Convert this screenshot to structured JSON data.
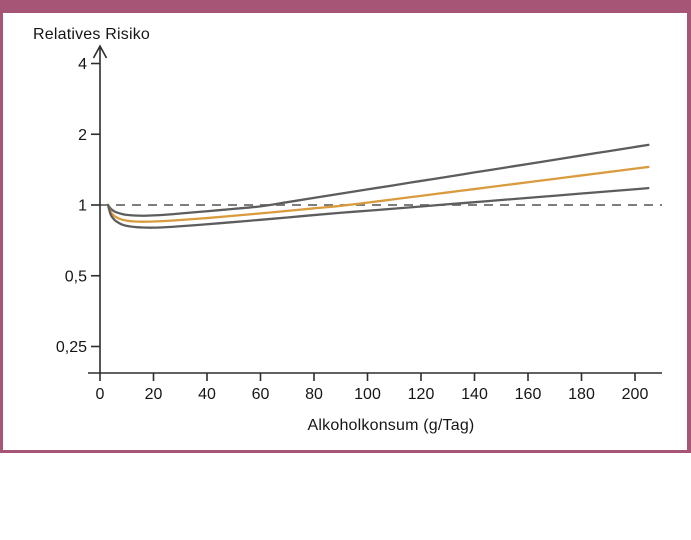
{
  "figure": {
    "frame_color": "#a65577",
    "background_color": "#ffffff"
  },
  "chart_data": {
    "type": "line",
    "title": "",
    "ylabel": "Relatives Risiko",
    "xlabel": "Alkoholkonsum (g/Tag)",
    "y_scale": "log2",
    "grid": "off",
    "legend": "none",
    "xlim": [
      0,
      210
    ],
    "ylim": [
      0.22,
      4.6
    ],
    "x_ticks": [
      0,
      20,
      40,
      60,
      80,
      100,
      120,
      140,
      160,
      180,
      200
    ],
    "x_tick_labels": [
      "0",
      "20",
      "40",
      "60",
      "80",
      "100",
      "120",
      "140",
      "160",
      "180",
      "200"
    ],
    "y_ticks": [
      4,
      2,
      1,
      0.5,
      0.25
    ],
    "y_tick_labels": [
      "4",
      "2",
      "1",
      "0,5",
      "0,25"
    ],
    "reference_line": {
      "value": 1,
      "style": "dashed",
      "color": "#7d7d7d"
    },
    "axis_color": "#2d2d2d",
    "series": [
      {
        "name": "upper-confidence-bound",
        "color": "#5d5d5d",
        "points": [
          [
            3,
            1.0
          ],
          [
            4,
            0.965
          ],
          [
            5,
            0.945
          ],
          [
            6,
            0.932
          ],
          [
            8,
            0.917
          ],
          [
            10,
            0.908
          ],
          [
            13,
            0.902
          ],
          [
            16,
            0.9
          ],
          [
            20,
            0.903
          ],
          [
            25,
            0.91
          ],
          [
            30,
            0.92
          ],
          [
            40,
            0.941
          ],
          [
            50,
            0.963
          ],
          [
            60,
            0.987
          ],
          [
            70,
            1.028
          ],
          [
            80,
            1.072
          ],
          [
            90,
            1.118
          ],
          [
            100,
            1.165
          ],
          [
            110,
            1.214
          ],
          [
            120,
            1.266
          ],
          [
            130,
            1.319
          ],
          [
            140,
            1.376
          ],
          [
            150,
            1.434
          ],
          [
            160,
            1.495
          ],
          [
            170,
            1.558
          ],
          [
            180,
            1.625
          ],
          [
            190,
            1.694
          ],
          [
            200,
            1.766
          ],
          [
            205,
            1.803
          ]
        ]
      },
      {
        "name": "relative-risk-estimate",
        "color": "#d99b3d",
        "points": [
          [
            3,
            1.0
          ],
          [
            4,
            0.935
          ],
          [
            5,
            0.905
          ],
          [
            6,
            0.888
          ],
          [
            8,
            0.868
          ],
          [
            10,
            0.858
          ],
          [
            13,
            0.851
          ],
          [
            16,
            0.849
          ],
          [
            20,
            0.851
          ],
          [
            25,
            0.856
          ],
          [
            30,
            0.863
          ],
          [
            40,
            0.88
          ],
          [
            50,
            0.9
          ],
          [
            60,
            0.921
          ],
          [
            70,
            0.944
          ],
          [
            80,
            0.968
          ],
          [
            90,
            0.992
          ],
          [
            100,
            1.024
          ],
          [
            110,
            1.058
          ],
          [
            120,
            1.094
          ],
          [
            130,
            1.131
          ],
          [
            140,
            1.169
          ],
          [
            150,
            1.209
          ],
          [
            160,
            1.25
          ],
          [
            170,
            1.292
          ],
          [
            180,
            1.336
          ],
          [
            190,
            1.381
          ],
          [
            200,
            1.428
          ],
          [
            205,
            1.452
          ]
        ]
      },
      {
        "name": "lower-confidence-bound",
        "color": "#5d5d5d",
        "points": [
          [
            3,
            1.0
          ],
          [
            4,
            0.91
          ],
          [
            5,
            0.875
          ],
          [
            6,
            0.853
          ],
          [
            8,
            0.828
          ],
          [
            10,
            0.815
          ],
          [
            13,
            0.806
          ],
          [
            16,
            0.802
          ],
          [
            20,
            0.801
          ],
          [
            25,
            0.805
          ],
          [
            30,
            0.812
          ],
          [
            40,
            0.828
          ],
          [
            50,
            0.846
          ],
          [
            60,
            0.865
          ],
          [
            70,
            0.885
          ],
          [
            80,
            0.906
          ],
          [
            90,
            0.927
          ],
          [
            100,
            0.945
          ],
          [
            110,
            0.965
          ],
          [
            120,
            0.985
          ],
          [
            130,
            1.007
          ],
          [
            140,
            1.028
          ],
          [
            150,
            1.05
          ],
          [
            160,
            1.072
          ],
          [
            170,
            1.095
          ],
          [
            180,
            1.119
          ],
          [
            190,
            1.143
          ],
          [
            200,
            1.167
          ],
          [
            205,
            1.18
          ]
        ]
      }
    ]
  }
}
